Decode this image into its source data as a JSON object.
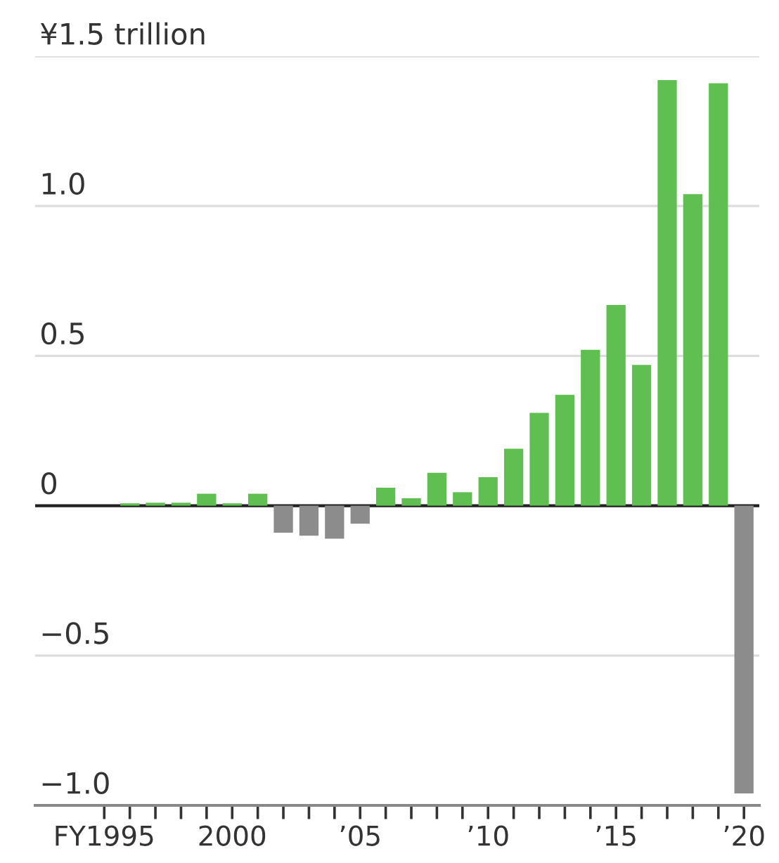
{
  "chart_data": {
    "type": "bar",
    "x": [
      1995,
      1996,
      1997,
      1998,
      1999,
      2000,
      2001,
      2002,
      2003,
      2004,
      2005,
      2006,
      2007,
      2008,
      2009,
      2010,
      2011,
      2012,
      2013,
      2014,
      2015,
      2016,
      2017,
      2018,
      2019,
      2020
    ],
    "values": [
      0,
      0.008,
      0.01,
      0.01,
      0.04,
      0.008,
      0.04,
      -0.09,
      -0.1,
      -0.11,
      -0.06,
      0.06,
      0.025,
      0.11,
      0.045,
      0.095,
      0.19,
      0.31,
      0.37,
      0.52,
      0.67,
      0.47,
      1.42,
      1.04,
      1.41,
      -0.96
    ],
    "colors": [
      "#5fbf50",
      "#5fbf50",
      "#5fbf50",
      "#5fbf50",
      "#5fbf50",
      "#5fbf50",
      "#5fbf50",
      "#8c8c8c",
      "#8c8c8c",
      "#8c8c8c",
      "#8c8c8c",
      "#5fbf50",
      "#5fbf50",
      "#5fbf50",
      "#5fbf50",
      "#5fbf50",
      "#5fbf50",
      "#5fbf50",
      "#5fbf50",
      "#5fbf50",
      "#5fbf50",
      "#5fbf50",
      "#5fbf50",
      "#5fbf50",
      "#5fbf50",
      "#8c8c8c"
    ],
    "xlim": [
      1992.3,
      2020.6
    ],
    "xticks": [
      {
        "value": 1995,
        "label": "FY1995"
      },
      {
        "value": 1996,
        "label": null
      },
      {
        "value": 1997,
        "label": null
      },
      {
        "value": 1998,
        "label": null
      },
      {
        "value": 1999,
        "label": null
      },
      {
        "value": 2000,
        "label": "2000"
      },
      {
        "value": 2001,
        "label": null
      },
      {
        "value": 2002,
        "label": null
      },
      {
        "value": 2003,
        "label": null
      },
      {
        "value": 2004,
        "label": null
      },
      {
        "value": 2005,
        "label": "’05"
      },
      {
        "value": 2006,
        "label": null
      },
      {
        "value": 2007,
        "label": null
      },
      {
        "value": 2008,
        "label": null
      },
      {
        "value": 2009,
        "label": null
      },
      {
        "value": 2010,
        "label": "’10"
      },
      {
        "value": 2011,
        "label": null
      },
      {
        "value": 2012,
        "label": null
      },
      {
        "value": 2013,
        "label": null
      },
      {
        "value": 2014,
        "label": null
      },
      {
        "value": 2015,
        "label": "’15"
      },
      {
        "value": 2016,
        "label": null
      },
      {
        "value": 2017,
        "label": null
      },
      {
        "value": 2018,
        "label": null
      },
      {
        "value": 2019,
        "label": null
      },
      {
        "value": 2020,
        "label": "’20"
      }
    ],
    "ylim": [
      -1.0,
      1.5
    ],
    "yticks": [
      {
        "value": -1.0,
        "label": "−1.0"
      },
      {
        "value": -0.5,
        "label": "−0.5"
      },
      0,
      {
        "value": 0.5,
        "label": "0.5"
      },
      {
        "value": 1.0,
        "label": "1.0"
      },
      {
        "value": 1.5,
        "label": "¥1.5 trillion"
      }
    ],
    "grid": "y",
    "ref_lines": [
      {
        "axis": "y",
        "value": 0,
        "color": "#222222"
      }
    ]
  }
}
